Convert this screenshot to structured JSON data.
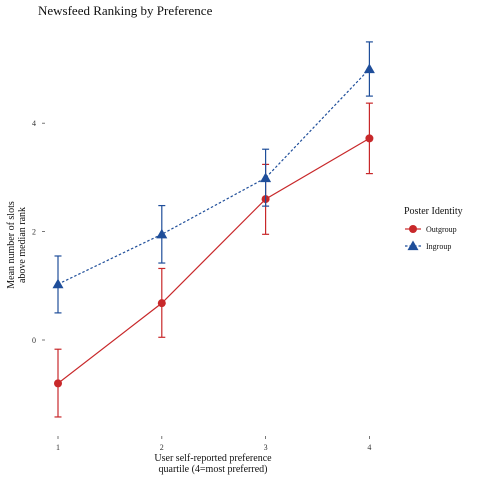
{
  "chart_data": {
    "type": "line",
    "title": "Newsfeed Ranking by Preference",
    "xlabel": [
      "User self-reported preference",
      "quartile (4=most preferred)"
    ],
    "ylabel": [
      "Mean number of slots",
      "above median rank"
    ],
    "x": [
      1,
      2,
      3,
      4
    ],
    "x_ticks": [
      "1",
      "2",
      "3",
      "4"
    ],
    "y_ticks": [
      "0",
      "2",
      "4"
    ],
    "ylim": [
      -1.8,
      5.5
    ],
    "grid": false,
    "legend": {
      "title": "Poster Identity",
      "position": "right"
    },
    "series": [
      {
        "name": "Outgroup",
        "color": "#c8282a",
        "marker": "circle",
        "line": "solid",
        "values": [
          -0.8,
          0.68,
          2.6,
          3.72
        ],
        "lower": [
          -1.42,
          0.05,
          1.95,
          3.07
        ],
        "upper": [
          -0.17,
          1.32,
          3.24,
          4.37
        ]
      },
      {
        "name": "Ingroup",
        "color": "#1f4e9a",
        "marker": "triangle",
        "line": "dashed",
        "values": [
          1.03,
          1.95,
          2.99,
          5.0
        ],
        "lower": [
          0.5,
          1.42,
          2.47,
          4.5
        ],
        "upper": [
          1.55,
          2.48,
          3.52,
          5.5
        ]
      }
    ]
  }
}
